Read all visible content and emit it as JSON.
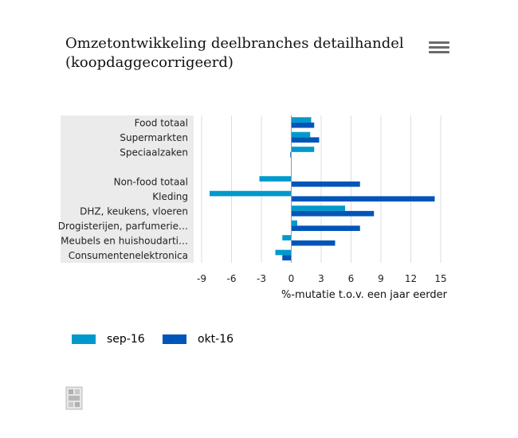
{
  "title_lines": [
    "Omzetontwikkeling deelbranches detailhandel",
    "(koopdaggecorrigeerd)"
  ],
  "menu_icon": "hamburger-menu-icon",
  "logo_icon": "cbs-logo-icon",
  "colors": {
    "sep": "#0099cc",
    "okt": "#0055b8",
    "band": "#ebebeb",
    "grid": "#dddddd",
    "zero": "#999999"
  },
  "chart_data": {
    "type": "bar",
    "orientation": "horizontal",
    "categories": [
      "Food totaal",
      "Supermarkten",
      "Speciaalzaken",
      "",
      "Non-food totaal",
      "Kleding",
      "DHZ, keukens, vloeren",
      "Drogisterijen, parfumerie…",
      "Meubels en huishoudarti…",
      "Consumentenelektronica"
    ],
    "series": [
      {
        "name": "sep-16",
        "color": "#0099cc",
        "values": [
          2.0,
          1.9,
          2.3,
          null,
          -3.2,
          -8.2,
          5.4,
          0.6,
          -0.9,
          -1.6
        ]
      },
      {
        "name": "okt-16",
        "color": "#0055b8",
        "values": [
          2.3,
          2.8,
          -0.1,
          null,
          6.9,
          14.4,
          8.3,
          6.9,
          4.4,
          -0.9
        ]
      }
    ],
    "xlim": [
      -9,
      15
    ],
    "xticks": [
      "-9",
      "-6",
      "-3",
      "0",
      "3",
      "6",
      "9",
      "12",
      "15"
    ],
    "xlabel": "%-mutatie t.o.v. een jaar eerder",
    "legend": "bottom-left",
    "grid": true
  }
}
